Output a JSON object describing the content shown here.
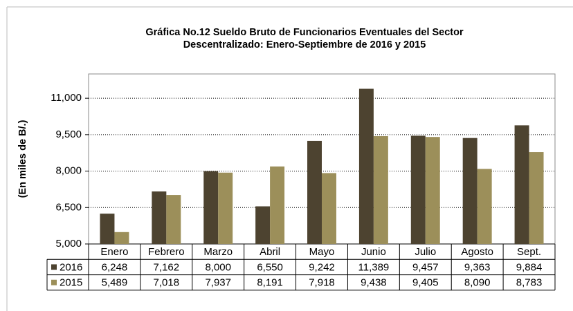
{
  "chart_data": {
    "type": "bar",
    "title": [
      "Gráfica No.12 Sueldo Bruto de Funcionarios Eventuales del Sector",
      "Descentralizado: Enero-Septiembre de 2016 y 2015"
    ],
    "y_label": "(En miles de B/.)",
    "categories": [
      "Enero",
      "Febrero",
      "Marzo",
      "Abril",
      "Mayo",
      "Junio",
      "Julio",
      "Agosto",
      "Sept."
    ],
    "series": [
      {
        "name": "2016",
        "color": "#4d4330",
        "values": [
          6248,
          7162,
          8000,
          6550,
          9242,
          11389,
          9457,
          9363,
          9884
        ],
        "value_labels": [
          "6,248",
          "7,162",
          "8,000",
          "6,550",
          "9,242",
          "11,389",
          "9,457",
          "9,363",
          "9,884"
        ]
      },
      {
        "name": "2015",
        "color": "#9c8f5a",
        "values": [
          5489,
          7018,
          7937,
          8191,
          7918,
          9438,
          9405,
          8090,
          8783
        ],
        "value_labels": [
          "5,489",
          "7,018",
          "7,937",
          "8,191",
          "7,918",
          "9,438",
          "9,405",
          "8,090",
          "8,783"
        ]
      }
    ],
    "ylim": [
      5000,
      12000
    ],
    "yticks": [
      {
        "value": 5000,
        "label": "5,000"
      },
      {
        "value": 6500,
        "label": "6,500"
      },
      {
        "value": 8000,
        "label": "8,000"
      },
      {
        "value": 9500,
        "label": "9,500"
      },
      {
        "value": 11000,
        "label": "11,000"
      }
    ],
    "grid": true
  }
}
